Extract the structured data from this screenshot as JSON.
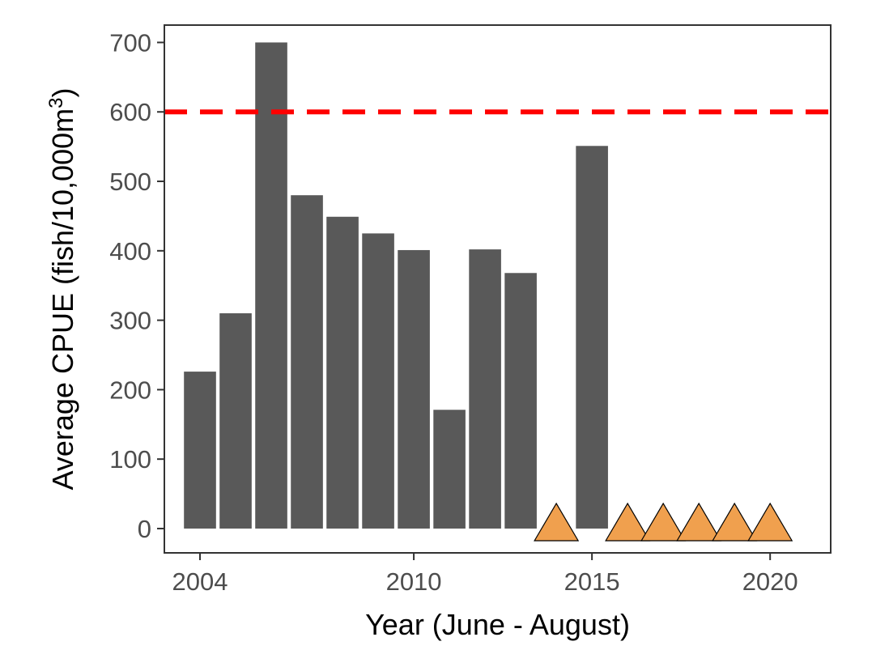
{
  "chart_data": {
    "type": "bar",
    "xlabel": "Year (June - August)",
    "ylabel_main": "Average CPUE (fish/10,000m",
    "ylabel_sup": "3",
    "ylabel_close": ")",
    "xlim": [
      2003,
      2021.7
    ],
    "ylim": [
      -35,
      725
    ],
    "x_ticks": [
      2004,
      2010,
      2015,
      2020
    ],
    "y_ticks": [
      0,
      100,
      200,
      300,
      400,
      500,
      600,
      700
    ],
    "x": [
      2004,
      2005,
      2006,
      2007,
      2008,
      2009,
      2010,
      2011,
      2012,
      2013,
      2015
    ],
    "values": [
      226,
      310,
      700,
      480,
      449,
      425,
      401,
      171,
      402,
      368,
      551
    ],
    "reference_line": {
      "y": 600,
      "style": "dashed",
      "color": "#ff0000"
    },
    "markers": {
      "x": [
        2014,
        2016,
        2017,
        2018,
        2019,
        2020
      ],
      "y": 0,
      "shape": "triangle",
      "color": "#f0a04e"
    },
    "bar_color": "#595959",
    "grid": false
  }
}
